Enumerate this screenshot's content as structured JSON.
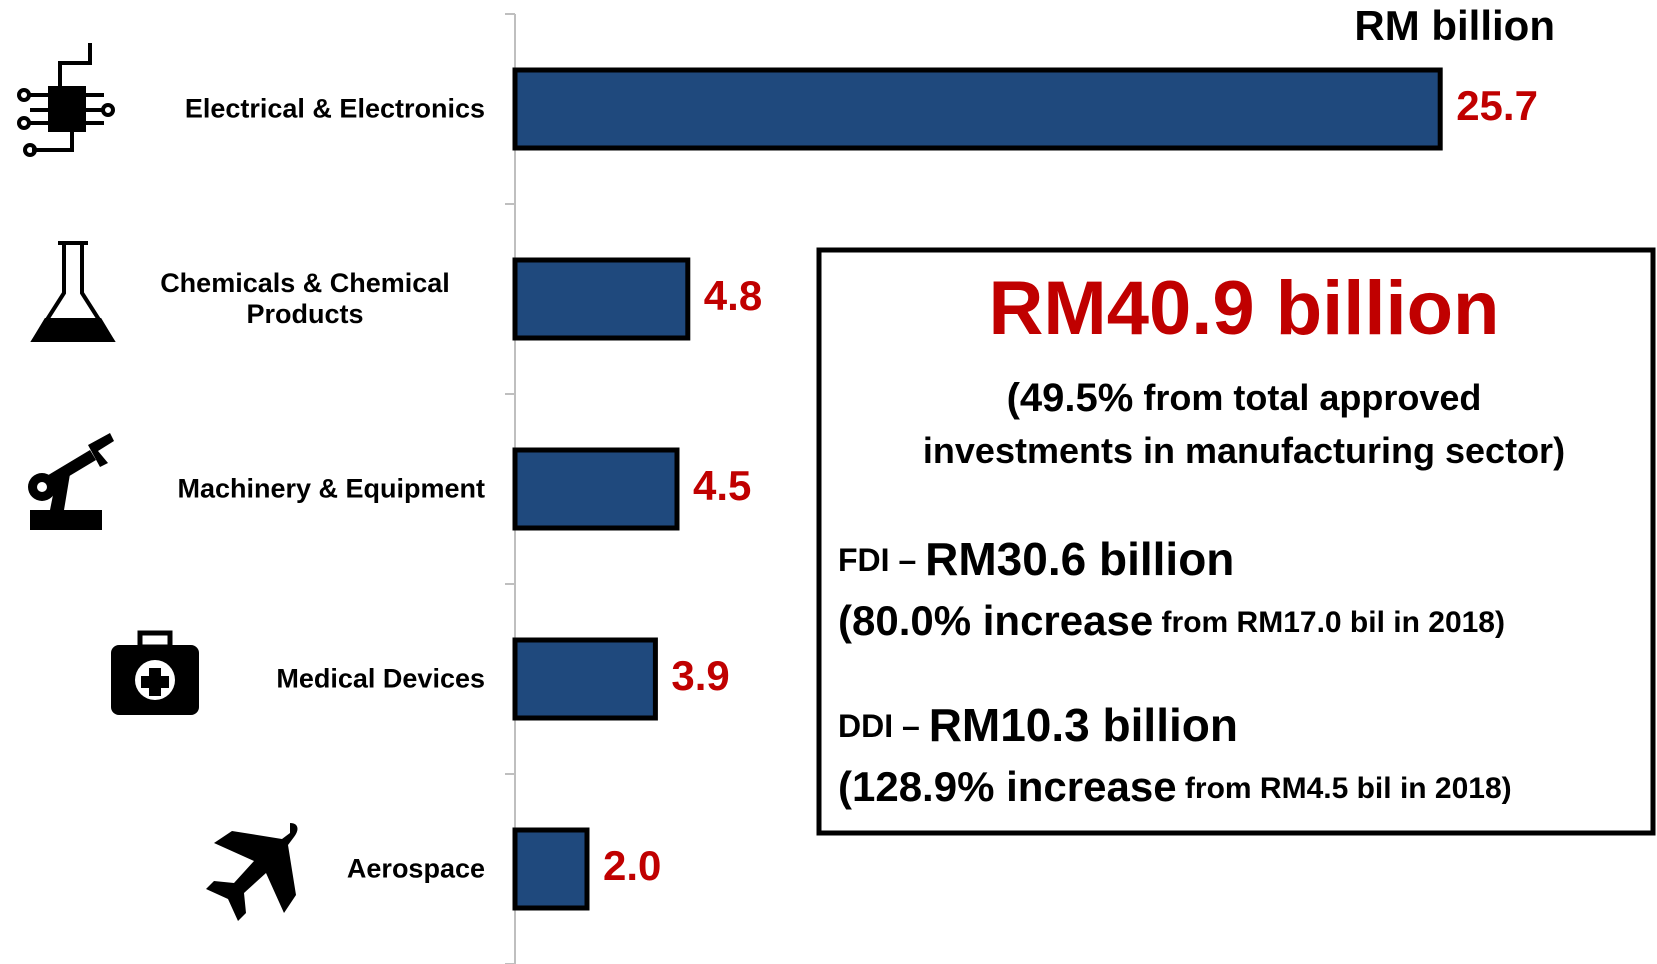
{
  "chart_data": {
    "type": "bar",
    "orientation": "horizontal",
    "unit_label": "RM billion",
    "categories": [
      "Electrical & Electronics",
      "Chemicals & Chemical Products",
      "Machinery & Equipment",
      "Medical Devices",
      "Aerospace"
    ],
    "values": [
      25.7,
      4.8,
      4.5,
      3.9,
      2.0
    ],
    "value_labels": [
      "25.7",
      "4.8",
      "4.5",
      "3.9",
      "2.0"
    ],
    "color": "#1f497d",
    "label_color": "#c00000",
    "xlim": [
      0,
      30
    ],
    "annotation": {
      "headline": "RM40.9 billion",
      "share": [
        "(49.5%",
        " from total approved"
      ],
      "share_line2": "investments in manufacturing sector)",
      "fdi": [
        "FDI – ",
        "RM30.6 billion"
      ],
      "fdi_detail": [
        "(80.0% increase",
        " from RM17.0 bil in 2018)"
      ],
      "ddi": [
        "DDI – ",
        "RM10.3 billion"
      ],
      "ddi_detail": [
        "(128.9% increase",
        " from RM4.5 bil in 2018)"
      ]
    }
  }
}
